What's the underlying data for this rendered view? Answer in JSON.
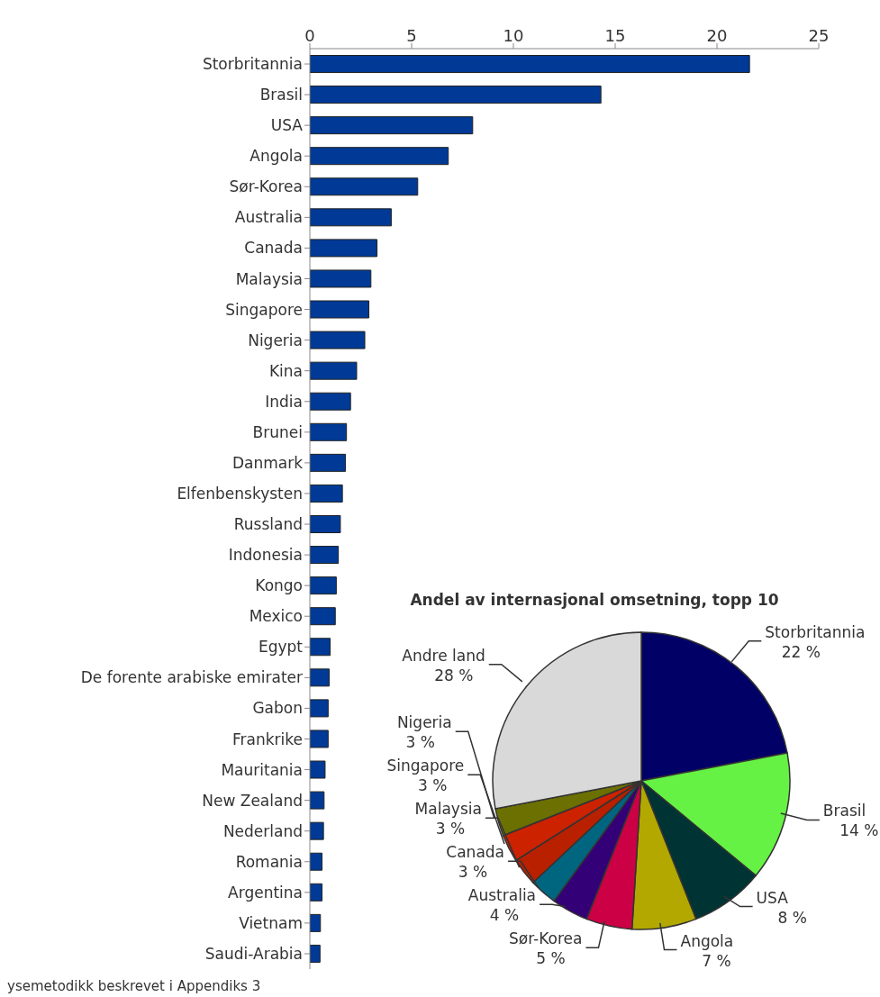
{
  "chart_data": [
    {
      "type": "bar",
      "orientation": "horizontal",
      "categories": [
        "Storbritannia",
        "Brasil",
        "USA",
        "Angola",
        "Sør-Korea",
        "Australia",
        "Canada",
        "Malaysia",
        "Singapore",
        "Nigeria",
        "Kina",
        "India",
        "Brunei",
        "Danmark",
        "Elfenbenskysten",
        "Russland",
        "Indonesia",
        "Kongo",
        "Mexico",
        "Egypt",
        "De forente arabiske emirater",
        "Gabon",
        "Frankrike",
        "Mauritania",
        "New Zealand",
        "Nederland",
        "Romania",
        "Argentina",
        "Vietnam",
        "Saudi-Arabia"
      ],
      "values": [
        21.6,
        14.3,
        8.0,
        6.8,
        5.3,
        4.0,
        3.3,
        3.0,
        2.9,
        2.7,
        2.3,
        2.0,
        1.8,
        1.75,
        1.6,
        1.5,
        1.4,
        1.3,
        1.25,
        1.0,
        0.95,
        0.9,
        0.9,
        0.75,
        0.7,
        0.67,
        0.6,
        0.6,
        0.52,
        0.5
      ],
      "color": "#003a96",
      "xlim": [
        0,
        25
      ],
      "xticks": [
        0,
        5,
        10,
        15,
        20,
        25
      ],
      "annotations": [
        "ysemetodikk beskrevet i Appendiks 3"
      ]
    },
    {
      "type": "pie",
      "title": "Andel av internasjonal omsetning, topp 10",
      "categories": [
        "Storbritannia",
        "Brasil",
        "USA",
        "Angola",
        "Sør-Korea",
        "Australia",
        "Canada",
        "Malaysia",
        "Singapore",
        "Nigeria",
        "Andre land"
      ],
      "values": [
        22,
        14,
        8,
        7,
        5,
        4,
        3,
        3,
        3,
        3,
        28
      ],
      "value_labels": [
        "22 %",
        "14 %",
        "8 %",
        "7 %",
        "5 %",
        "4 %",
        "3 %",
        "3 %",
        "3 %",
        "3 %",
        "28 %"
      ],
      "colors": [
        "#000066",
        "#66f244",
        "#003333",
        "#b3a800",
        "#cc0044",
        "#330077",
        "#006680",
        "#b82000",
        "#cc2200",
        "#6b7000",
        "#d9d9d9"
      ]
    }
  ]
}
